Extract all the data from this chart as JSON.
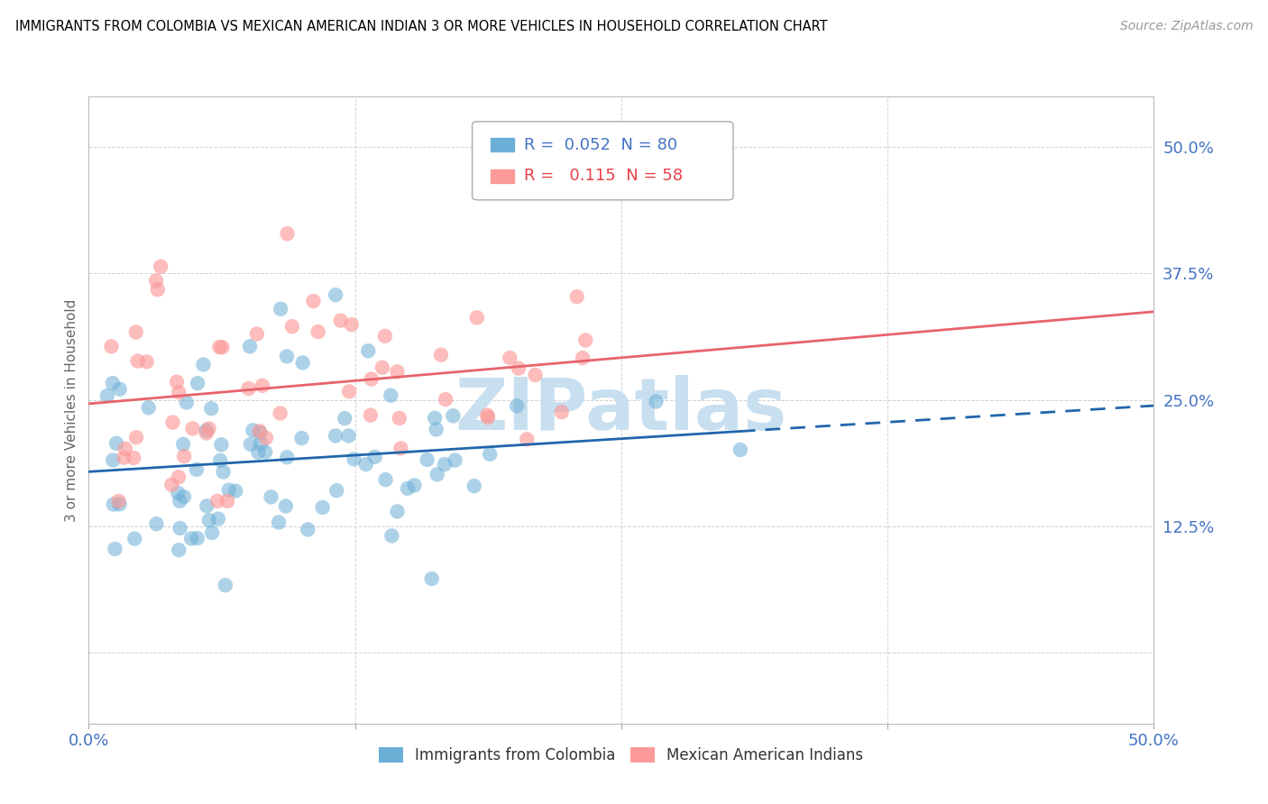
{
  "title": "IMMIGRANTS FROM COLOMBIA VS MEXICAN AMERICAN INDIAN 3 OR MORE VEHICLES IN HOUSEHOLD CORRELATION CHART",
  "source": "Source: ZipAtlas.com",
  "ylabel": "3 or more Vehicles in Household",
  "ytick_labels": [
    "",
    "12.5%",
    "25.0%",
    "37.5%",
    "50.0%"
  ],
  "ytick_values": [
    0.0,
    0.125,
    0.25,
    0.375,
    0.5
  ],
  "xlim": [
    0.0,
    0.5
  ],
  "ylim": [
    -0.07,
    0.55
  ],
  "legend1_r": 0.052,
  "legend1_n": 80,
  "legend2_r": 0.115,
  "legend2_n": 58,
  "color_colombia": "#6baed6",
  "color_mexico": "#fb9a99",
  "color_colombia_line": "#2166ac",
  "color_mexico_line": "#e8636a",
  "color_dashed_line": "#6baed6",
  "watermark_text": "ZIPatlas",
  "watermark_color": "#c8dff0",
  "grid_color": "#cccccc",
  "tick_color": "#4472c4"
}
